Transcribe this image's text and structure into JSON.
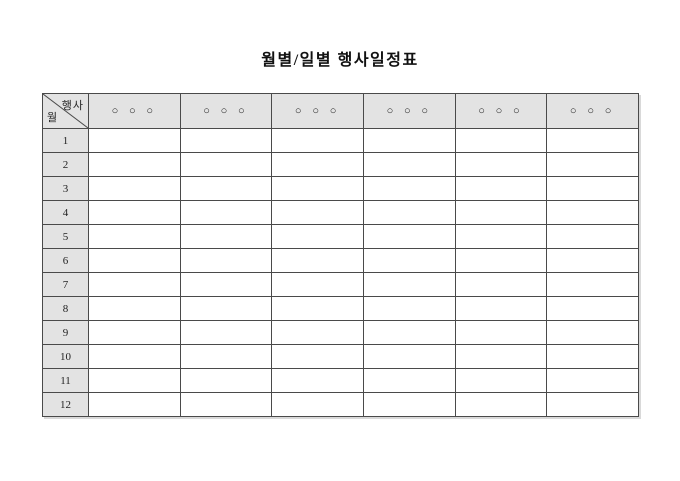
{
  "page": {
    "title": "월별/일별 행사일정표"
  },
  "table": {
    "corner": {
      "top_right": "행사",
      "bottom_left": "월"
    },
    "column_headers": [
      "○ ○ ○",
      "○ ○ ○",
      "○ ○ ○",
      "○ ○ ○",
      "○ ○ ○",
      "○ ○ ○"
    ],
    "month_rows": [
      "1",
      "2",
      "3",
      "4",
      "5",
      "6",
      "7",
      "8",
      "9",
      "10",
      "11",
      "12"
    ],
    "cell_value_empty": ""
  },
  "colors": {
    "page_background": "#ffffff",
    "header_background": "#e3e3e3",
    "border": "#4a4a4a",
    "text": "#111111"
  }
}
